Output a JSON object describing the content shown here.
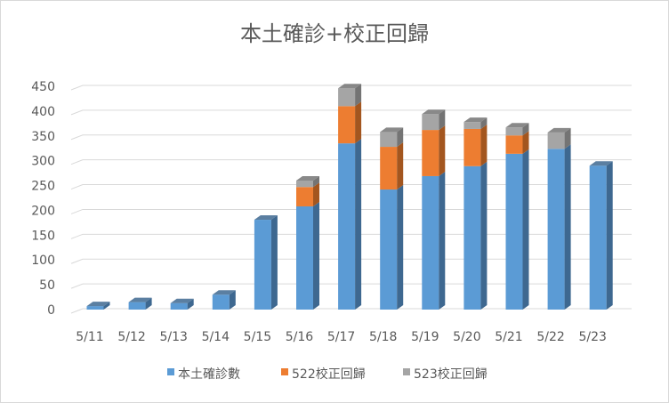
{
  "chart_data": {
    "type": "bar",
    "stacked": true,
    "style": "3d-column",
    "title": "本土確診+校正回歸",
    "xlabel": "",
    "ylabel": "",
    "ylim": [
      0,
      450
    ],
    "yticks": [
      0,
      50,
      100,
      150,
      200,
      250,
      300,
      350,
      400,
      450
    ],
    "grid": true,
    "legend_position": "bottom",
    "categories": [
      "5/11",
      "5/12",
      "5/13",
      "5/14",
      "5/15",
      "5/16",
      "5/17",
      "5/18",
      "5/19",
      "5/20",
      "5/21",
      "5/22",
      "5/23"
    ],
    "series": [
      {
        "name": "本土確診數",
        "color": "#5b9bd5",
        "side": "#3e6890",
        "values": [
          7,
          15,
          13,
          30,
          181,
          208,
          335,
          242,
          269,
          289,
          314,
          324,
          290
        ]
      },
      {
        "name": "522校正回歸",
        "color": "#ed7d31",
        "side": "#a3561f",
        "values": [
          0,
          0,
          0,
          0,
          0,
          39,
          75,
          86,
          93,
          75,
          37,
          0,
          0
        ]
      },
      {
        "name": "523校正回歸",
        "color": "#a5a5a5",
        "side": "#747474",
        "values": [
          0,
          0,
          0,
          0,
          0,
          13,
          36,
          30,
          32,
          14,
          16,
          33,
          0
        ]
      }
    ]
  }
}
